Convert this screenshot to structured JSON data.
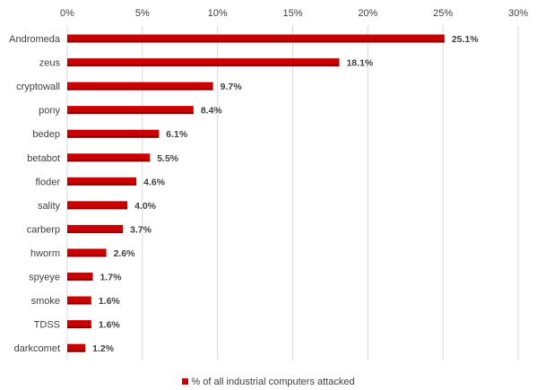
{
  "chart_data": {
    "type": "bar",
    "orientation": "horizontal",
    "categories": [
      "Andromeda",
      "zeus",
      "cryptowall",
      "pony",
      "bedep",
      "betabot",
      "floder",
      "sality",
      "carberp",
      "hworm",
      "spyeye",
      "smoke",
      "TDSS",
      "darkcomet"
    ],
    "series": [
      {
        "name": "% of all industrial computers attacked",
        "values": [
          25.1,
          18.1,
          9.7,
          8.4,
          6.1,
          5.5,
          4.6,
          4.0,
          3.7,
          2.6,
          1.7,
          1.6,
          1.6,
          1.2
        ],
        "labels": [
          "25.1%",
          "18.1%",
          "9.7%",
          "8.4%",
          "6.1%",
          "5.5%",
          "4.6%",
          "4.0%",
          "3.7%",
          "2.6%",
          "1.7%",
          "1.6%",
          "1.6%",
          "1.2%"
        ]
      }
    ],
    "xlim": [
      0,
      30
    ],
    "x_ticks": [
      0,
      5,
      10,
      15,
      20,
      25,
      30
    ],
    "x_tick_labels": [
      "0%",
      "5%",
      "10%",
      "15%",
      "20%",
      "25%",
      "30%"
    ],
    "x_axis_position": "top",
    "grid": true,
    "legend_position": "bottom",
    "colors": {
      "bar": "#cc0000",
      "bar_shade": "#8a0000",
      "grid": "#d9d9d9",
      "text": "#404040"
    }
  }
}
